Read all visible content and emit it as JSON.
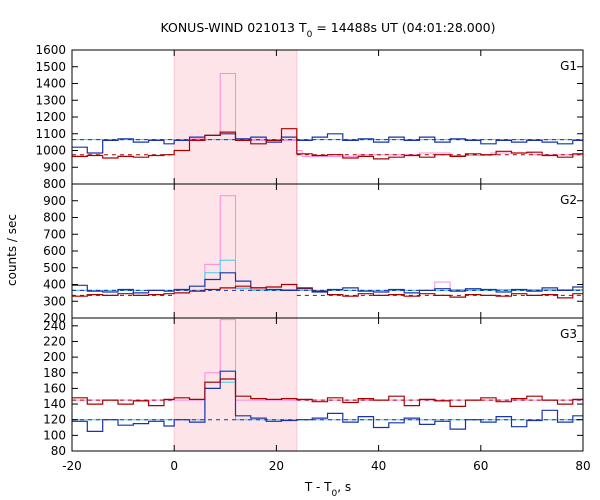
{
  "chart_data": {
    "type": "line",
    "title_main": "KONUS-WIND 021013 T",
    "title_sub": "0",
    "title_rest": " = 14488s UT (04:01:28.000)",
    "xlabel_main": "T - T",
    "xlabel_sub": "0",
    "xlabel_rest": ", s",
    "ylabel": "counts / sec",
    "xlim": [
      -20,
      80
    ],
    "xticks": [
      -20,
      0,
      20,
      40,
      60,
      80
    ],
    "highlight_interval": [
      0,
      24
    ],
    "colors": {
      "dark_red": "#aa0000",
      "blue": "#1a33aa",
      "pink": "#ff88dd",
      "cyan": "#44ccee",
      "shade": "#fde4e8"
    },
    "panels": [
      {
        "label": "G1",
        "ylim": [
          800,
          1600
        ],
        "yticks": [
          800,
          900,
          1000,
          1100,
          1200,
          1300,
          1400,
          1500,
          1600
        ],
        "bg_dark_red": 975,
        "bg_blue": 1065,
        "series": {
          "dark_red": [
            [
              -20,
              965
            ],
            [
              -17,
              970
            ],
            [
              -14,
              955
            ],
            [
              -11,
              965
            ],
            [
              -8,
              960
            ],
            [
              -5,
              970
            ],
            [
              -2,
              975
            ],
            [
              0,
              1000
            ],
            [
              3,
              1060
            ],
            [
              6,
              1090
            ],
            [
              9,
              1110
            ],
            [
              12,
              1060
            ],
            [
              15,
              1040
            ],
            [
              18,
              1060
            ],
            [
              21,
              1130
            ],
            [
              24,
              980
            ],
            [
              27,
              970
            ],
            [
              30,
              975
            ],
            [
              33,
              955
            ],
            [
              36,
              965
            ],
            [
              39,
              950
            ],
            [
              42,
              960
            ],
            [
              45,
              970
            ],
            [
              48,
              960
            ],
            [
              51,
              975
            ],
            [
              54,
              965
            ],
            [
              57,
              980
            ],
            [
              60,
              975
            ],
            [
              63,
              995
            ],
            [
              66,
              985
            ],
            [
              69,
              990
            ],
            [
              72,
              970
            ],
            [
              75,
              960
            ],
            [
              78,
              980
            ]
          ],
          "blue": [
            [
              -20,
              1020
            ],
            [
              -17,
              985
            ],
            [
              -14,
              1060
            ],
            [
              -11,
              1070
            ],
            [
              -8,
              1050
            ],
            [
              -5,
              1060
            ],
            [
              -2,
              1040
            ],
            [
              0,
              1060
            ],
            [
              3,
              1080
            ],
            [
              6,
              1090
            ],
            [
              9,
              1100
            ],
            [
              12,
              1070
            ],
            [
              15,
              1080
            ],
            [
              18,
              1050
            ],
            [
              21,
              1080
            ],
            [
              24,
              1060
            ],
            [
              27,
              1080
            ],
            [
              30,
              1100
            ],
            [
              33,
              1060
            ],
            [
              36,
              1070
            ],
            [
              39,
              1050
            ],
            [
              42,
              1080
            ],
            [
              45,
              1060
            ],
            [
              48,
              1080
            ],
            [
              51,
              1050
            ],
            [
              54,
              1070
            ],
            [
              57,
              1060
            ],
            [
              60,
              1040
            ],
            [
              63,
              1060
            ],
            [
              66,
              1050
            ],
            [
              69,
              1060
            ],
            [
              72,
              1050
            ],
            [
              75,
              1040
            ],
            [
              78,
              1060
            ]
          ],
          "pink": [
            [
              24,
              1000
            ],
            [
              25,
              965
            ],
            [
              36,
              975
            ],
            [
              48,
              985
            ],
            [
              54,
              970
            ],
            [
              62,
              985
            ],
            [
              70,
              975
            ],
            [
              80,
              975
            ]
          ],
          "pink_burst": [
            [
              0,
              1060
            ],
            [
              3,
              1070
            ],
            [
              6,
              1090
            ],
            [
              9,
              1460
            ],
            [
              12,
              1070
            ],
            [
              15,
              1060
            ],
            [
              24,
              1000
            ]
          ],
          "cyan": [
            [
              -20,
              1065
            ],
            [
              6,
              1065
            ],
            [
              9,
              1065
            ],
            [
              12,
              1065
            ],
            [
              24,
              1065
            ],
            [
              80,
              1065
            ]
          ]
        }
      },
      {
        "label": "G2",
        "ylim": [
          200,
          1000
        ],
        "yticks": [
          200,
          300,
          400,
          500,
          600,
          700,
          800,
          900
        ],
        "bg_dark_red": 335,
        "bg_blue": 365,
        "series": {
          "dark_red": [
            [
              -20,
              330
            ],
            [
              -17,
              340
            ],
            [
              -14,
              335
            ],
            [
              -11,
              345
            ],
            [
              -8,
              335
            ],
            [
              -5,
              340
            ],
            [
              -2,
              345
            ],
            [
              0,
              350
            ],
            [
              3,
              360
            ],
            [
              6,
              370
            ],
            [
              9,
              380
            ],
            [
              12,
              390
            ],
            [
              15,
              380
            ],
            [
              18,
              385
            ],
            [
              21,
              400
            ],
            [
              24,
              380
            ],
            [
              27,
              360
            ],
            [
              30,
              340
            ],
            [
              33,
              330
            ],
            [
              36,
              345
            ],
            [
              39,
              335
            ],
            [
              42,
              340
            ],
            [
              45,
              330
            ],
            [
              48,
              345
            ],
            [
              51,
              335
            ],
            [
              54,
              325
            ],
            [
              57,
              340
            ],
            [
              60,
              335
            ],
            [
              63,
              330
            ],
            [
              66,
              345
            ],
            [
              69,
              335
            ],
            [
              72,
              340
            ],
            [
              75,
              320
            ],
            [
              78,
              345
            ]
          ],
          "blue": [
            [
              -20,
              395
            ],
            [
              -17,
              360
            ],
            [
              -14,
              355
            ],
            [
              -11,
              370
            ],
            [
              -8,
              350
            ],
            [
              -5,
              365
            ],
            [
              -2,
              360
            ],
            [
              0,
              370
            ],
            [
              3,
              390
            ],
            [
              6,
              430
            ],
            [
              9,
              470
            ],
            [
              12,
              420
            ],
            [
              15,
              380
            ],
            [
              18,
              370
            ],
            [
              21,
              365
            ],
            [
              24,
              375
            ],
            [
              27,
              355
            ],
            [
              30,
              370
            ],
            [
              33,
              380
            ],
            [
              36,
              360
            ],
            [
              39,
              355
            ],
            [
              42,
              370
            ],
            [
              45,
              350
            ],
            [
              48,
              365
            ],
            [
              51,
              375
            ],
            [
              54,
              360
            ],
            [
              57,
              375
            ],
            [
              60,
              370
            ],
            [
              63,
              355
            ],
            [
              66,
              370
            ],
            [
              69,
              360
            ],
            [
              72,
              380
            ],
            [
              75,
              365
            ],
            [
              78,
              385
            ]
          ],
          "pink": [
            [
              -20,
              365
            ],
            [
              0,
              365
            ],
            [
              6,
              520
            ],
            [
              9,
              930
            ],
            [
              12,
              380
            ],
            [
              15,
              370
            ],
            [
              24,
              365
            ],
            [
              48,
              365
            ],
            [
              51,
              415
            ],
            [
              54,
              370
            ],
            [
              80,
              365
            ]
          ],
          "cyan": [
            [
              -20,
              365
            ],
            [
              3,
              365
            ],
            [
              6,
              470
            ],
            [
              9,
              545
            ],
            [
              12,
              375
            ],
            [
              15,
              365
            ],
            [
              80,
              365
            ]
          ]
        }
      },
      {
        "label": "G3",
        "ylim": [
          80,
          250
        ],
        "yticks": [
          80,
          100,
          120,
          140,
          160,
          180,
          200,
          220,
          240
        ],
        "bg_dark_red": 145,
        "bg_blue": 120,
        "series": {
          "dark_red": [
            [
              -20,
              148
            ],
            [
              -17,
              140
            ],
            [
              -14,
              145
            ],
            [
              -11,
              140
            ],
            [
              -8,
              144
            ],
            [
              -5,
              138
            ],
            [
              -2,
              146
            ],
            [
              0,
              148
            ],
            [
              3,
              146
            ],
            [
              6,
              168
            ],
            [
              9,
              172
            ],
            [
              12,
              150
            ],
            [
              15,
              147
            ],
            [
              18,
              146
            ],
            [
              21,
              147
            ],
            [
              24,
              146
            ],
            [
              27,
              143
            ],
            [
              30,
              148
            ],
            [
              33,
              142
            ],
            [
              36,
              147
            ],
            [
              39,
              145
            ],
            [
              42,
              150
            ],
            [
              45,
              138
            ],
            [
              48,
              146
            ],
            [
              51,
              144
            ],
            [
              54,
              137
            ],
            [
              57,
              145
            ],
            [
              60,
              148
            ],
            [
              63,
              143
            ],
            [
              66,
              147
            ],
            [
              69,
              150
            ],
            [
              72,
              145
            ],
            [
              75,
              140
            ],
            [
              78,
              146
            ]
          ],
          "blue": [
            [
              -20,
              118
            ],
            [
              -17,
              105
            ],
            [
              -14,
              120
            ],
            [
              -11,
              113
            ],
            [
              -8,
              115
            ],
            [
              -5,
              118
            ],
            [
              -2,
              112
            ],
            [
              0,
              120
            ],
            [
              3,
              117
            ],
            [
              6,
              160
            ],
            [
              9,
              182
            ],
            [
              12,
              125
            ],
            [
              15,
              122
            ],
            [
              18,
              118
            ],
            [
              21,
              119
            ],
            [
              24,
              120
            ],
            [
              27,
              122
            ],
            [
              30,
              128
            ],
            [
              33,
              117
            ],
            [
              36,
              124
            ],
            [
              39,
              110
            ],
            [
              42,
              116
            ],
            [
              45,
              122
            ],
            [
              48,
              114
            ],
            [
              51,
              118
            ],
            [
              54,
              108
            ],
            [
              57,
              120
            ],
            [
              60,
              117
            ],
            [
              63,
              124
            ],
            [
              66,
              111
            ],
            [
              69,
              119
            ],
            [
              72,
              132
            ],
            [
              75,
              117
            ],
            [
              78,
              125
            ]
          ],
          "pink": [
            [
              -20,
              145
            ],
            [
              3,
              145
            ],
            [
              6,
              180
            ],
            [
              9,
              248
            ],
            [
              12,
              145
            ],
            [
              80,
              145
            ]
          ],
          "cyan": [
            [
              -20,
              120
            ],
            [
              3,
              120
            ],
            [
              6,
              168
            ],
            [
              9,
              168
            ],
            [
              12,
              120
            ],
            [
              80,
              120
            ]
          ]
        }
      }
    ]
  }
}
